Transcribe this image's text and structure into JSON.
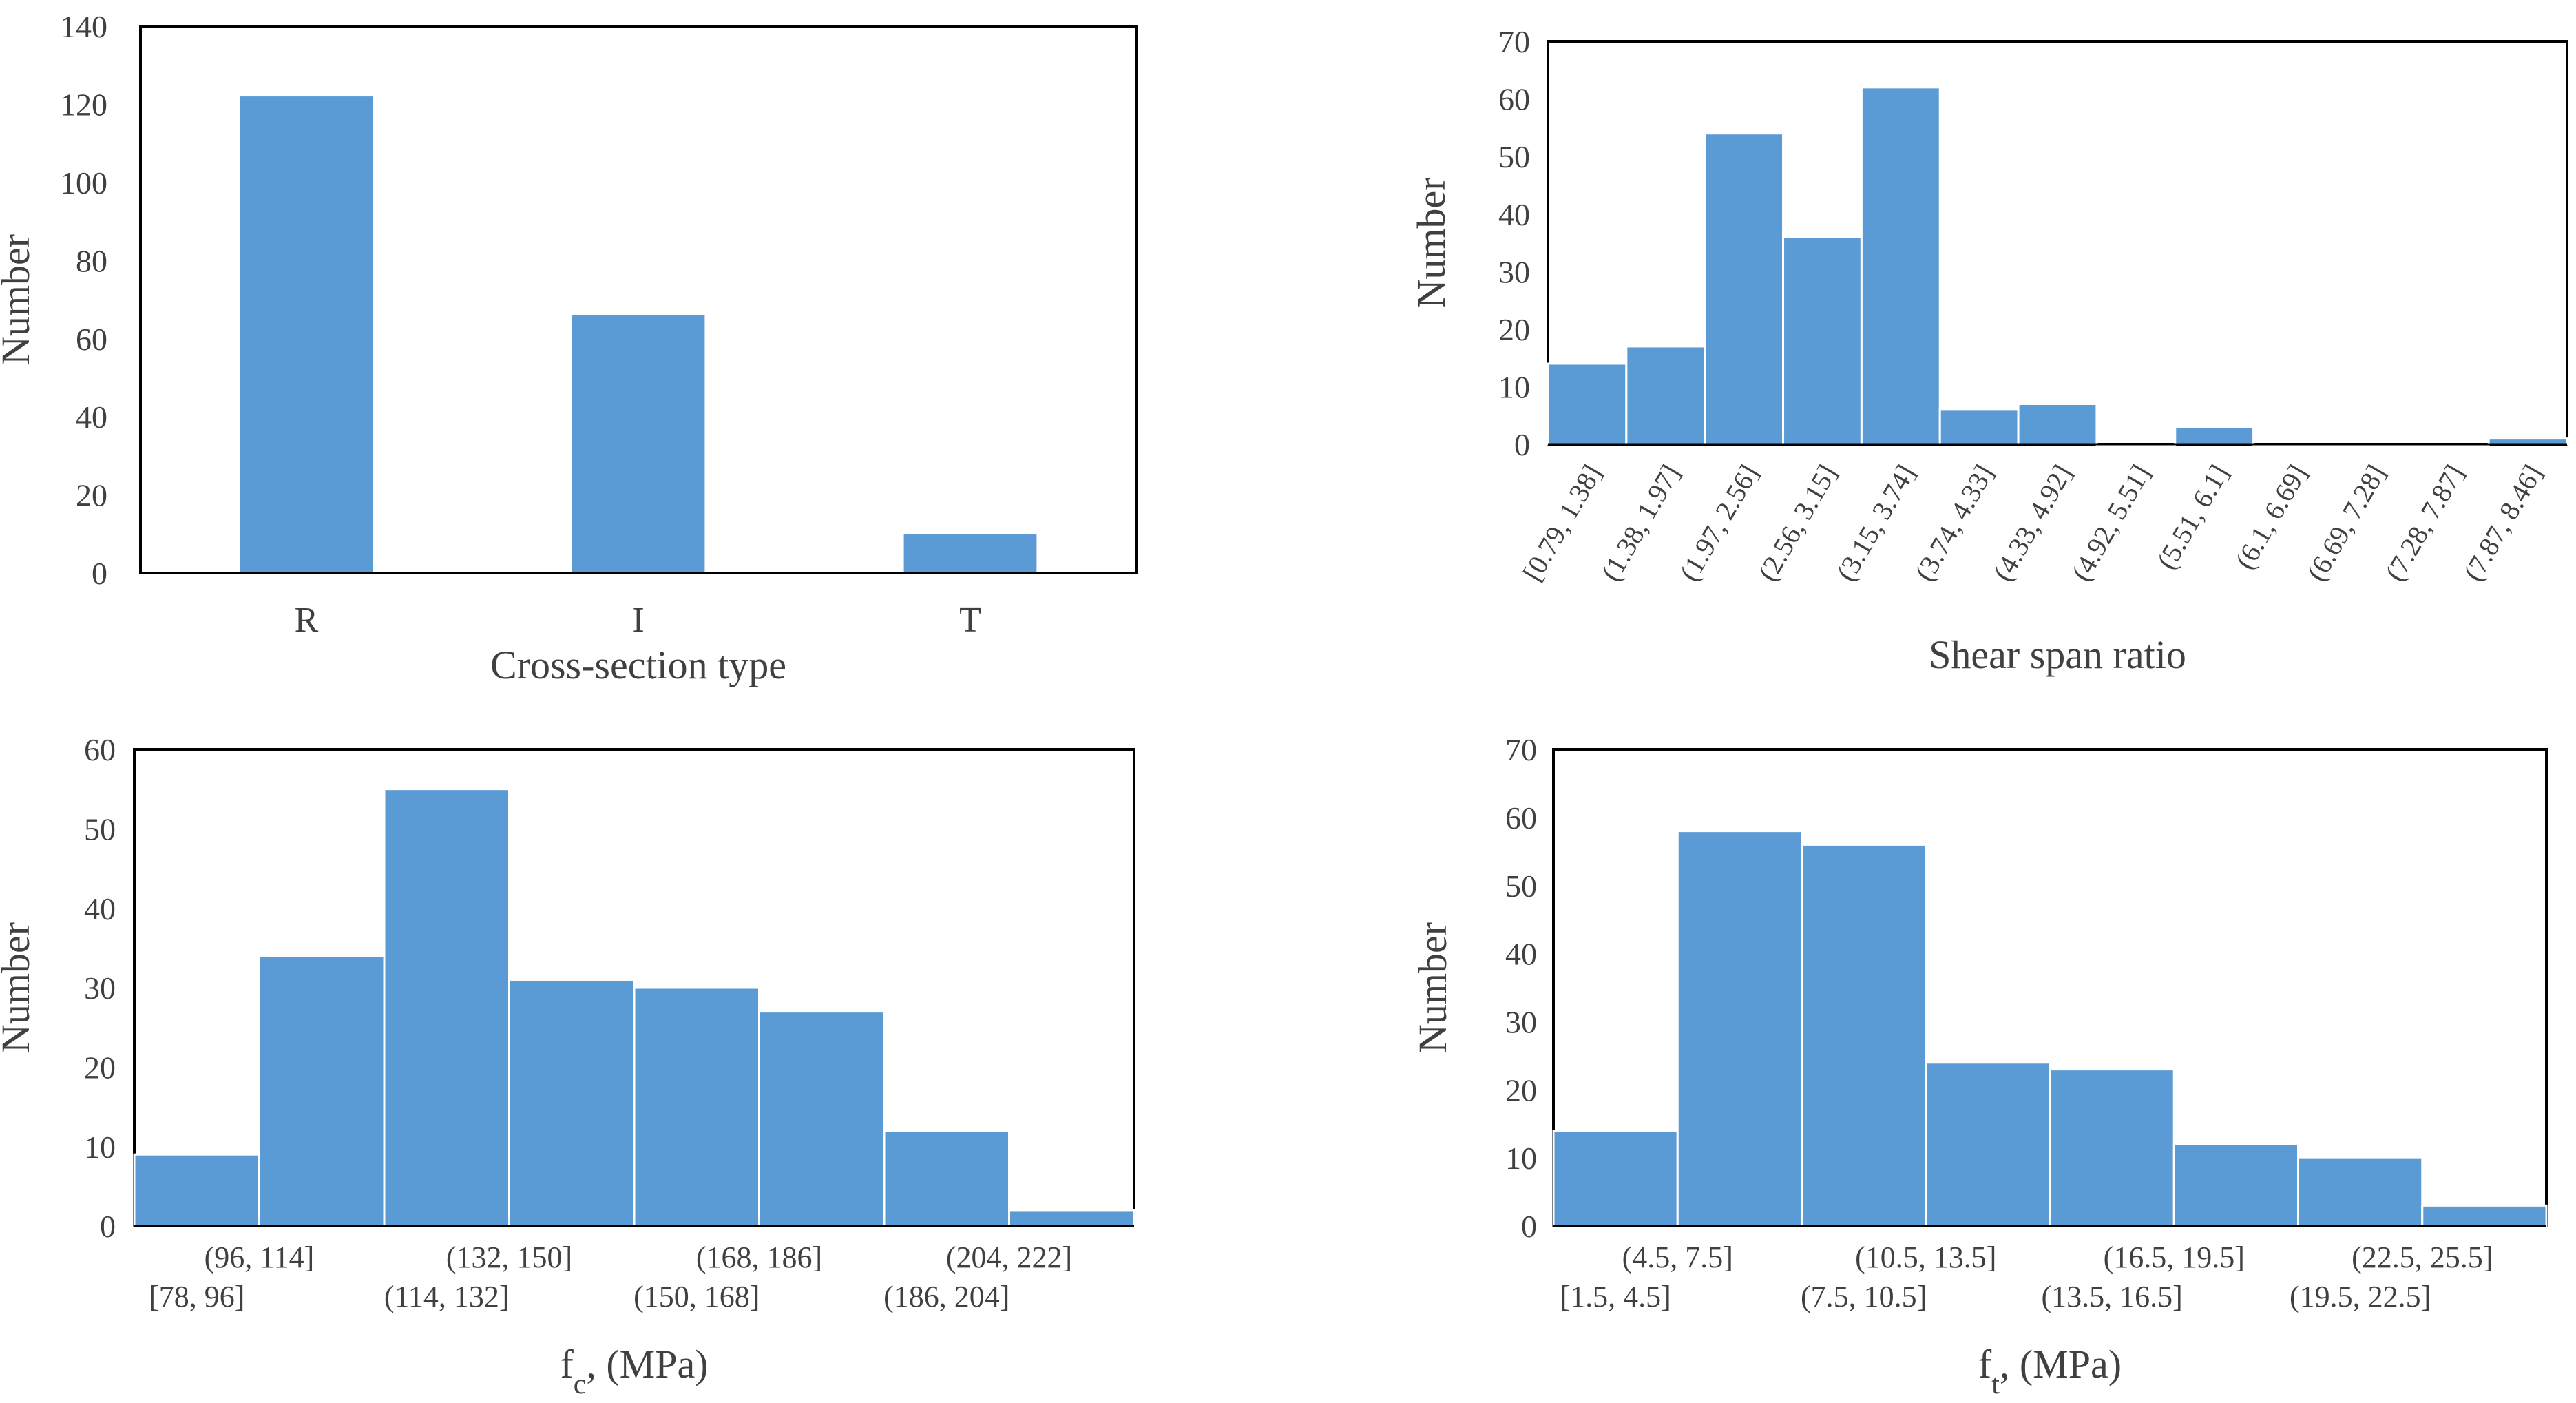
{
  "colors": {
    "bar": "#5b9bd5",
    "bar_edge": "#ffffff",
    "axis": "#000000",
    "text": "#404040"
  },
  "chart_data": [
    {
      "id": "cross-section",
      "type": "bar",
      "title": "",
      "xlabel": "Cross-section type",
      "ylabel": "Number",
      "categories": [
        "R",
        "I",
        "T"
      ],
      "values": [
        122,
        66,
        10
      ],
      "ylim": [
        0,
        140
      ],
      "yticks": [
        0,
        20,
        40,
        60,
        80,
        100,
        120,
        140
      ],
      "grid": false
    },
    {
      "id": "shear-span",
      "type": "bar",
      "title": "",
      "xlabel": "Shear span ratio",
      "ylabel": "Number",
      "categories": [
        "[0.79, 1.38]",
        "(1.38, 1.97]",
        "(1.97, 2.56]",
        "(2.56, 3.15]",
        "(3.15, 3.74]",
        "(3.74, 4.33]",
        "(4.33, 4.92]",
        "(4.92, 5.51]",
        "(5.51, 6.1]",
        "(6.1, 6.69]",
        "(6.69, 7.28]",
        "(7.28, 7.87]",
        "(7.87, 8.46]"
      ],
      "values": [
        14,
        17,
        54,
        36,
        62,
        6,
        7,
        0,
        3,
        0,
        0,
        0,
        1
      ],
      "ylim": [
        0,
        70
      ],
      "yticks": [
        0,
        10,
        20,
        30,
        40,
        50,
        60,
        70
      ],
      "grid": false
    },
    {
      "id": "fc",
      "type": "bar",
      "title": "",
      "xlabel": "f",
      "xlabel_sub": "c",
      "xlabel_tail": ", (MPa)",
      "ylabel": "Number",
      "categories": [
        "[78, 96]",
        "(96, 114]",
        "(114, 132]",
        "(132, 150]",
        "(150, 168]",
        "(168, 186]",
        "(186, 204]",
        "(204, 222]"
      ],
      "values": [
        9,
        34,
        55,
        31,
        30,
        27,
        12,
        2
      ],
      "ylim": [
        0,
        60
      ],
      "yticks": [
        0,
        10,
        20,
        30,
        40,
        50,
        60
      ],
      "grid": false
    },
    {
      "id": "ft",
      "type": "bar",
      "title": "",
      "xlabel": "f",
      "xlabel_sub": "t",
      "xlabel_tail": ", (MPa)",
      "ylabel": "Number",
      "categories": [
        "[1.5, 4.5]",
        "(4.5, 7.5]",
        "(7.5, 10.5]",
        "(10.5, 13.5]",
        "(13.5, 16.5]",
        "(16.5, 19.5]",
        "(19.5, 22.5]",
        "(22.5, 25.5]"
      ],
      "values": [
        14,
        58,
        56,
        24,
        23,
        12,
        10,
        3
      ],
      "ylim": [
        0,
        70
      ],
      "yticks": [
        0,
        10,
        20,
        30,
        40,
        50,
        60,
        70
      ],
      "grid": false
    }
  ]
}
